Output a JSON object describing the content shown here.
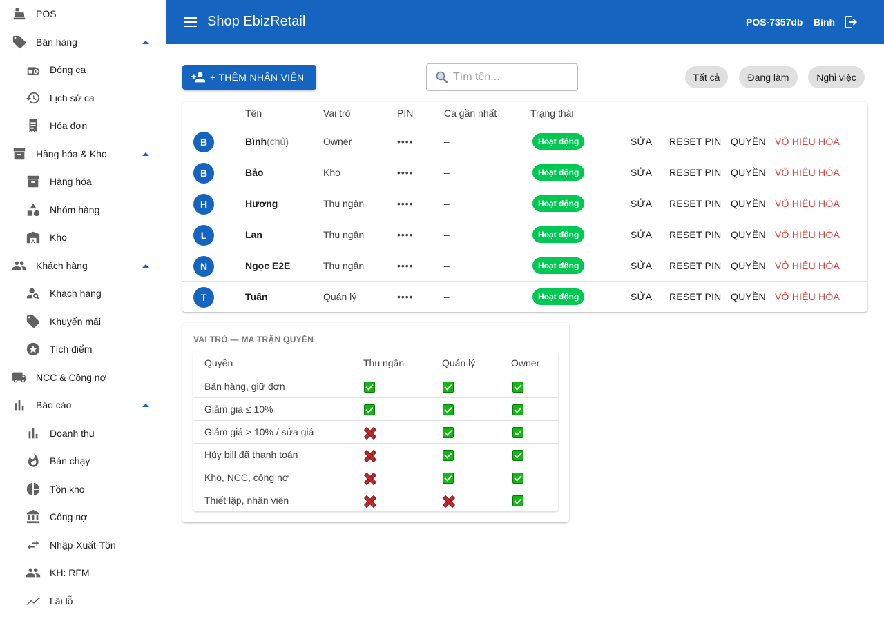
{
  "app": {
    "title": "Shop EbizRetail",
    "pos_id": "POS-7357db",
    "user": "Bình"
  },
  "sidebar": {
    "items": [
      {
        "label": "POS",
        "icon": "cash-register-icon",
        "level": "top",
        "expandable": false
      },
      {
        "label": "Bán hàng",
        "icon": "tag-icon",
        "level": "top",
        "expandable": true
      },
      {
        "label": "Đóng ca",
        "icon": "shift-close-icon",
        "level": "sub"
      },
      {
        "label": "Lịch sử ca",
        "icon": "history-icon",
        "level": "sub"
      },
      {
        "label": "Hóa đơn",
        "icon": "receipt-icon",
        "level": "sub"
      },
      {
        "label": "Hàng hóa & Kho",
        "icon": "archive-icon",
        "level": "top",
        "expandable": true
      },
      {
        "label": "Hàng hóa",
        "icon": "archive-icon",
        "level": "sub"
      },
      {
        "label": "Nhóm hàng",
        "icon": "category-icon",
        "level": "sub"
      },
      {
        "label": "Kho",
        "icon": "warehouse-icon",
        "level": "sub"
      },
      {
        "label": "Khách hàng",
        "icon": "people-icon",
        "level": "top",
        "expandable": true
      },
      {
        "label": "Khách hàng",
        "icon": "person-search-icon",
        "level": "sub"
      },
      {
        "label": "Khuyến mãi",
        "icon": "tag-icon",
        "level": "sub"
      },
      {
        "label": "Tích điểm",
        "icon": "star-icon",
        "level": "sub"
      },
      {
        "label": "NCC & Công nợ",
        "icon": "truck-icon",
        "level": "top",
        "expandable": false
      },
      {
        "label": "Báo cáo",
        "icon": "bar-chart-icon",
        "level": "top",
        "expandable": true
      },
      {
        "label": "Doanh thu",
        "icon": "bar-chart-icon",
        "level": "sub"
      },
      {
        "label": "Bán chạy",
        "icon": "fire-icon",
        "level": "sub"
      },
      {
        "label": "Tồn kho",
        "icon": "pie-chart-icon",
        "level": "sub"
      },
      {
        "label": "Công nợ",
        "icon": "bank-icon",
        "level": "sub"
      },
      {
        "label": "Nhập-Xuất-Tồn",
        "icon": "swap-icon",
        "level": "sub"
      },
      {
        "label": "KH: RFM",
        "icon": "people-icon",
        "level": "sub"
      },
      {
        "label": "Lãi lỗ",
        "icon": "trending-icon",
        "level": "sub"
      }
    ]
  },
  "toolbar": {
    "add_label": "+ THÊM NHÂN VIÊN",
    "search_placeholder": "Tìm tên...",
    "filters": [
      "Tất cả",
      "Đang làm",
      "Nghỉ việc"
    ]
  },
  "staff_table": {
    "headers": [
      "Tên",
      "Vai trò",
      "PIN",
      "Ca gần nhất",
      "Trạng thái"
    ],
    "actions": {
      "edit": "SỬA",
      "reset_pin": "RESET PIN",
      "permissions": "QUYỀN",
      "disable": "VÔ HIỆU HÓA"
    },
    "rows": [
      {
        "initial": "B",
        "name": "Bình",
        "tag": "(chủ)",
        "role": "Owner",
        "pin": "••••",
        "last_shift": "–",
        "status": "Hoạt động"
      },
      {
        "initial": "B",
        "name": "Bảo",
        "tag": "",
        "role": "Kho",
        "pin": "••••",
        "last_shift": "–",
        "status": "Hoạt động"
      },
      {
        "initial": "H",
        "name": "Hương",
        "tag": "",
        "role": "Thu ngân",
        "pin": "••••",
        "last_shift": "–",
        "status": "Hoạt động"
      },
      {
        "initial": "L",
        "name": "Lan",
        "tag": "",
        "role": "Thu ngân",
        "pin": "••••",
        "last_shift": "–",
        "status": "Hoạt động"
      },
      {
        "initial": "N",
        "name": "Ngọc E2E",
        "tag": "",
        "role": "Thu ngân",
        "pin": "••••",
        "last_shift": "–",
        "status": "Hoạt động"
      },
      {
        "initial": "T",
        "name": "Tuấn",
        "tag": "",
        "role": "Quản lý",
        "pin": "••••",
        "last_shift": "–",
        "status": "Hoạt động"
      }
    ]
  },
  "permissions": {
    "title": "VAI TRÒ — MA TRẬN QUYỀN",
    "headers": [
      "Quyền",
      "Thu ngân",
      "Quản lý",
      "Owner"
    ],
    "rows": [
      {
        "label": "Bán hàng, giữ đơn",
        "values": [
          true,
          true,
          true
        ]
      },
      {
        "label": "Giảm giá ≤ 10%",
        "values": [
          true,
          true,
          true
        ]
      },
      {
        "label": "Giảm giá > 10% / sửa giá",
        "values": [
          false,
          true,
          true
        ]
      },
      {
        "label": "Hủy bill đã thanh toán",
        "values": [
          false,
          true,
          true
        ]
      },
      {
        "label": "Kho, NCC, công nợ",
        "values": [
          false,
          true,
          true
        ]
      },
      {
        "label": "Thiết lập, nhân viên",
        "values": [
          false,
          false,
          true
        ]
      }
    ]
  },
  "colors": {
    "primary": "#1565c0",
    "status_active": "#00c853",
    "danger": "#e53935"
  }
}
